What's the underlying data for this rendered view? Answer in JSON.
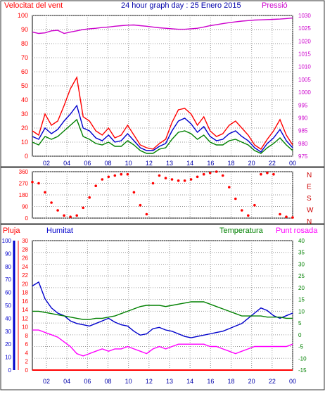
{
  "header": {
    "left_title": "Velocitat del vent",
    "center_title": "24 hour graph day : 25 Enero 2015",
    "right_title": "Pressió"
  },
  "x_ticks": [
    "02",
    "04",
    "06",
    "08",
    "10",
    "12",
    "13",
    "14",
    "16",
    "18",
    "20",
    "22",
    "00"
  ],
  "chart_data": [
    {
      "type": "line",
      "title": "24 hour graph day : 25 Enero 2015",
      "series": [
        {
          "name": "Velocitat del vent",
          "color": "#ff0000",
          "axis": "left",
          "values": [
            18,
            15,
            30,
            22,
            25,
            36,
            48,
            56,
            28,
            25,
            18,
            15,
            20,
            13,
            15,
            22,
            15,
            8,
            6,
            5,
            9,
            12,
            24,
            33,
            34,
            30,
            22,
            28,
            18,
            14,
            16,
            22,
            25,
            20,
            15,
            8,
            5,
            12,
            18,
            26,
            15,
            8
          ]
        },
        {
          "name": "",
          "color": "#0000cc",
          "axis": "left",
          "values": [
            14,
            12,
            20,
            16,
            19,
            25,
            30,
            36,
            20,
            18,
            13,
            11,
            15,
            10,
            11,
            16,
            11,
            6,
            4,
            4,
            7,
            9,
            18,
            25,
            27,
            23,
            17,
            21,
            14,
            11,
            12,
            16,
            18,
            14,
            11,
            6,
            3,
            9,
            13,
            19,
            11,
            6
          ]
        },
        {
          "name": "",
          "color": "#008000",
          "axis": "left",
          "values": [
            10,
            8,
            14,
            12,
            14,
            18,
            22,
            26,
            14,
            12,
            9,
            8,
            10,
            7,
            7,
            11,
            8,
            4,
            2,
            2,
            5,
            6,
            12,
            17,
            18,
            16,
            12,
            15,
            10,
            8,
            8,
            11,
            12,
            10,
            8,
            4,
            2,
            6,
            9,
            13,
            8,
            4
          ]
        },
        {
          "name": "Pressió",
          "color": "#cc00cc",
          "axis": "right",
          "values": [
            1023.5,
            1023.0,
            1023.2,
            1024.0,
            1024.2,
            1023.0,
            1023.5,
            1024.0,
            1024.5,
            1024.8,
            1025.0,
            1025.3,
            1025.5,
            1025.8,
            1026.0,
            1026.2,
            1026.3,
            1026.0,
            1025.8,
            1025.5,
            1025.2,
            1025.0,
            1024.8,
            1024.6,
            1024.6,
            1024.8,
            1025.0,
            1025.5,
            1026.0,
            1026.4,
            1026.8,
            1027.2,
            1027.5,
            1027.8,
            1028.0,
            1028.2,
            1028.3,
            1028.4,
            1028.5,
            1028.6,
            1028.8,
            1029.0
          ]
        }
      ],
      "y_left_ticks": [
        0,
        10,
        20,
        30,
        40,
        50,
        60,
        70,
        80,
        90,
        100
      ],
      "y_right_ticks": [
        975,
        980,
        985,
        990,
        995,
        1000,
        1005,
        1010,
        1015,
        1020,
        1025,
        1030
      ],
      "ylim_left": [
        0,
        100
      ],
      "ylim_right": [
        975,
        1030
      ]
    },
    {
      "type": "scatter",
      "series": [
        {
          "name": "",
          "color": "#ff0000",
          "values": [
            280,
            270,
            200,
            120,
            60,
            20,
            10,
            20,
            80,
            160,
            250,
            300,
            320,
            330,
            340,
            340,
            200,
            100,
            30,
            270,
            330,
            310,
            300,
            290,
            290,
            300,
            320,
            340,
            350,
            360,
            330,
            240,
            150,
            60,
            20,
            100,
            340,
            350,
            340,
            30,
            10,
            5
          ]
        }
      ],
      "y_ticks": [
        0,
        90,
        180,
        270,
        360
      ],
      "y_ticks_labels": [
        "0",
        "90",
        "180",
        "270",
        "360"
      ],
      "compass_labels": [
        "N",
        "W",
        "S",
        "E",
        "N"
      ],
      "ylim": [
        0,
        360
      ]
    },
    {
      "type": "line",
      "legend": [
        "Pluja",
        "Humitat",
        "Temperatura",
        "Punt rosada"
      ],
      "series": [
        {
          "name": "Humitat",
          "color": "#0000cc",
          "axis": "left_humidity",
          "values": [
            65,
            68,
            55,
            48,
            44,
            42,
            38,
            36,
            35,
            34,
            36,
            38,
            40,
            37,
            35,
            34,
            30,
            27,
            28,
            32,
            33,
            31,
            30,
            28,
            26,
            25,
            26,
            27,
            28,
            29,
            30,
            32,
            34,
            36,
            40,
            44,
            48,
            46,
            42,
            40,
            42,
            44
          ]
        },
        {
          "name": "Temperatura",
          "color": "#008000",
          "axis": "right",
          "values": [
            10,
            10,
            9.5,
            9,
            8.5,
            8,
            7.5,
            7,
            6.5,
            6.5,
            7,
            7,
            7.5,
            8,
            9,
            10,
            11,
            12,
            12.5,
            12.5,
            12.5,
            12,
            12.5,
            13,
            13.5,
            14,
            14,
            14,
            13,
            12,
            11,
            10,
            9,
            8,
            8,
            8,
            8,
            7.5,
            7.5,
            7.5,
            7,
            7
          ]
        },
        {
          "name": "Punt rosada",
          "color": "#ff00ff",
          "axis": "right",
          "values": [
            2,
            2,
            1,
            0,
            -1,
            -3,
            -5,
            -8,
            -9,
            -8,
            -7,
            -6,
            -7,
            -6,
            -6,
            -5,
            -6,
            -7,
            -8,
            -6,
            -5,
            -6,
            -5,
            -4,
            -4,
            -4,
            -4,
            -4,
            -5,
            -5,
            -6,
            -7,
            -8,
            -7,
            -6,
            -5,
            -5,
            -5,
            -5,
            -5,
            -5,
            -4
          ]
        },
        {
          "name": "Pluja",
          "color": "#ff0000",
          "axis": "left_rain",
          "values": [
            0,
            0,
            0,
            0,
            0,
            0,
            0,
            0,
            0,
            0,
            0,
            0,
            0,
            0,
            0,
            0,
            0,
            0,
            0,
            0,
            0,
            0,
            0,
            0,
            0,
            0,
            0,
            0,
            0,
            0,
            0,
            0,
            0,
            0,
            0,
            0,
            0,
            0,
            0,
            0,
            0,
            0
          ]
        }
      ],
      "y_humidity_ticks": [
        0,
        10,
        20,
        30,
        40,
        50,
        60,
        70,
        80,
        90,
        100
      ],
      "y_rain_ticks": [
        0,
        2,
        4,
        6,
        8,
        10,
        12,
        14,
        16,
        18,
        20,
        22,
        24,
        26,
        28,
        30
      ],
      "y_right_ticks": [
        -15,
        -10,
        -5,
        0,
        5,
        10,
        15,
        20,
        25,
        30,
        35,
        40
      ],
      "ylim_humidity": [
        0,
        100
      ],
      "ylim_rain": [
        0,
        30
      ],
      "ylim_right": [
        -15,
        40
      ]
    }
  ],
  "colors": {
    "wind": "#ff0000",
    "pressure": "#cc00cc",
    "humidity": "#0000cc",
    "temperature": "#008000",
    "dewpoint": "#ff00ff",
    "rain": "#ff0000",
    "frame": "#333333",
    "grid": "#999999"
  }
}
